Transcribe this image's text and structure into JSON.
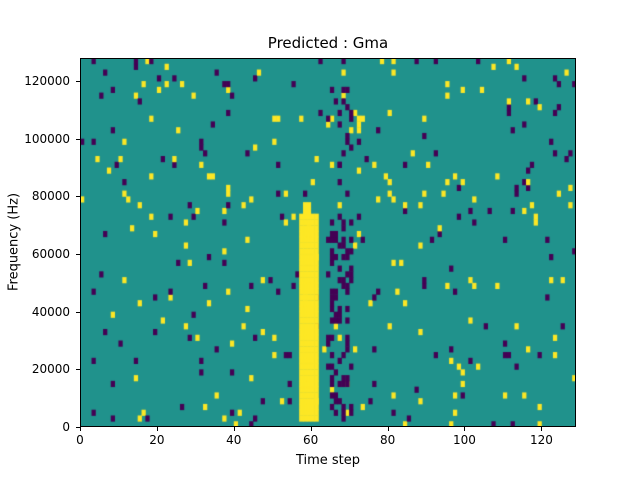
{
  "chart_data": {
    "type": "heatmap",
    "title": "Predicted : Gma",
    "xlabel": "Time step",
    "ylabel": "Frequency (Hz)",
    "xlim": [
      0,
      129
    ],
    "ylim": [
      0,
      128000
    ],
    "x_ticks": [
      0,
      20,
      40,
      60,
      80,
      100,
      120
    ],
    "y_ticks": [
      0,
      20000,
      40000,
      60000,
      80000,
      100000,
      120000
    ],
    "grid": false,
    "legend": "none",
    "grid_size": {
      "cols": 129,
      "rows": 64,
      "hz_per_row": 2000
    },
    "colormap": {
      "background": "#20928c",
      "low": "#440154",
      "high": "#fde725"
    },
    "sparse_noise": {
      "seed": 1234567,
      "yellow_density": 0.02,
      "purple_density": 0.02
    },
    "bands": [
      {
        "name": "solid-yellow-call-band",
        "value": "high",
        "mode": "solid",
        "t0": 57,
        "t1": 61,
        "f0": 2000,
        "f1": 74000,
        "density": 1.0
      },
      {
        "name": "yellow-band-taper",
        "value": "high",
        "mode": "dense",
        "t0": 58,
        "t1": 60,
        "f0": 74000,
        "f1": 78000,
        "density": 0.7
      },
      {
        "name": "purple-echo-cluster",
        "value": "low",
        "mode": "dense",
        "t0": 64,
        "t1": 70,
        "f0": 2000,
        "f1": 72000,
        "density": 0.35
      },
      {
        "name": "purple-echo-upper",
        "value": "low",
        "mode": "dense",
        "t0": 64,
        "t1": 70,
        "f0": 72000,
        "f1": 122000,
        "density": 0.12
      }
    ]
  }
}
